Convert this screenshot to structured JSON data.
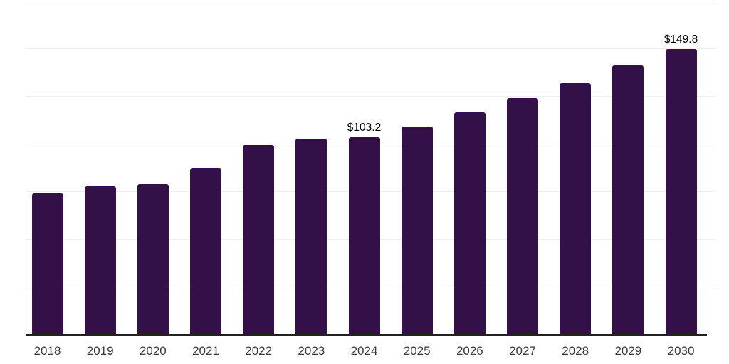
{
  "chart_data": {
    "type": "bar",
    "categories": [
      "2018",
      "2019",
      "2020",
      "2021",
      "2022",
      "2023",
      "2024",
      "2025",
      "2026",
      "2027",
      "2028",
      "2029",
      "2030"
    ],
    "values": [
      73.9,
      77.6,
      78.8,
      87.1,
      99.3,
      102.8,
      103.2,
      109.0,
      116.4,
      123.9,
      131.7,
      141.0,
      149.8
    ],
    "point_labels": [
      "",
      "",
      "",
      "",
      "",
      "",
      "$103.2",
      "",
      "",
      "",
      "",
      "",
      "$149.8"
    ],
    "title": "",
    "xlabel": "",
    "ylabel": "",
    "ylim": [
      0,
      175
    ],
    "ytick_step": 25,
    "y_tick_labels_visible": false,
    "grid": "horizontal",
    "legend": "none",
    "bar_color": "#331148",
    "background_color": "#ffffff",
    "gridline_color": "#f0f0f2",
    "axis_line_color": "#222222",
    "tick_label_color": "#3a3a3a",
    "data_label_color": "#000000"
  }
}
